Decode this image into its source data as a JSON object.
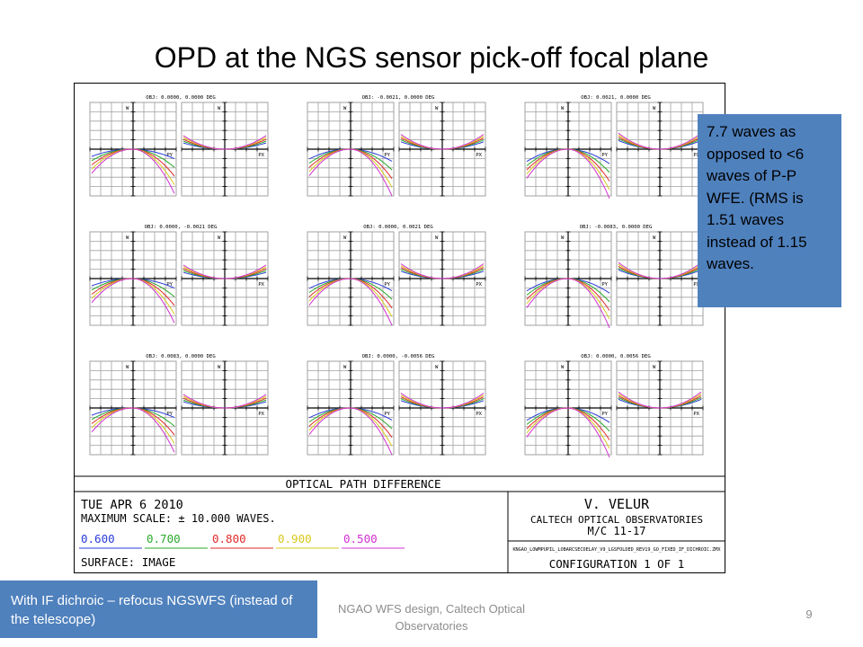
{
  "slide": {
    "title": "OPD at the NGS sensor pick-off focal plane",
    "callout": "7.7 waves as opposed to <6 waves of P-P WFE. (RMS is 1.51 waves instead of 1.15 waves.",
    "note": "With IF dichroic – refocus NGSWFS (instead of the telescope)",
    "footer": "NGAO WFS design, Caltech Optical Observatories",
    "page_number": "9"
  },
  "plot": {
    "banner": "OPTICAL PATH DIFFERENCE",
    "axis_w": "W",
    "axis_px": "PX",
    "axis_py": "PY",
    "fields": [
      "OBJ: 0.0000, 0.0000 DEG",
      "OBJ: -0.0021, 0.0000 DEG",
      "OBJ: 0.0021, 0.0000 DEG",
      "OBJ: 0.0000, -0.0021 DEG",
      "OBJ: 0.0000, 0.0021 DEG",
      "OBJ: -0.0083, 0.0000 DEG",
      "OBJ: 0.0083, 0.0000 DEG",
      "OBJ: 0.0000, -0.0056 DEG",
      "OBJ: 0.0000, 0.0056 DEG"
    ],
    "date": "TUE APR 6 2010",
    "max_scale": "MAXIMUM SCALE: ± 10.000 WAVES.",
    "wavelengths": [
      "0.600",
      "0.700",
      "0.800",
      "0.900",
      "0.500"
    ],
    "wavelength_colors": [
      "#2a3cd8",
      "#2aa82a",
      "#e02a2a",
      "#d8c81c",
      "#d030d0"
    ],
    "surface": "SURFACE: IMAGE",
    "author": "V. VELUR",
    "institution": "CALTECH OPTICAL OBSERVATORIES",
    "machine": "M/C 11-17",
    "filename": "KNGAO_LOWMPUPIL_LOBARCSECDELAY_V9_LGSFOLDED_REV19_GO_FIXED_IF_DICHROIC.ZMX",
    "configuration": "CONFIGURATION 1 OF 1"
  },
  "colors": {
    "callout_fill": "#4f81bd",
    "note_fill": "#4f81bd",
    "grid": "#a0a0a0",
    "axis": "#000000"
  }
}
